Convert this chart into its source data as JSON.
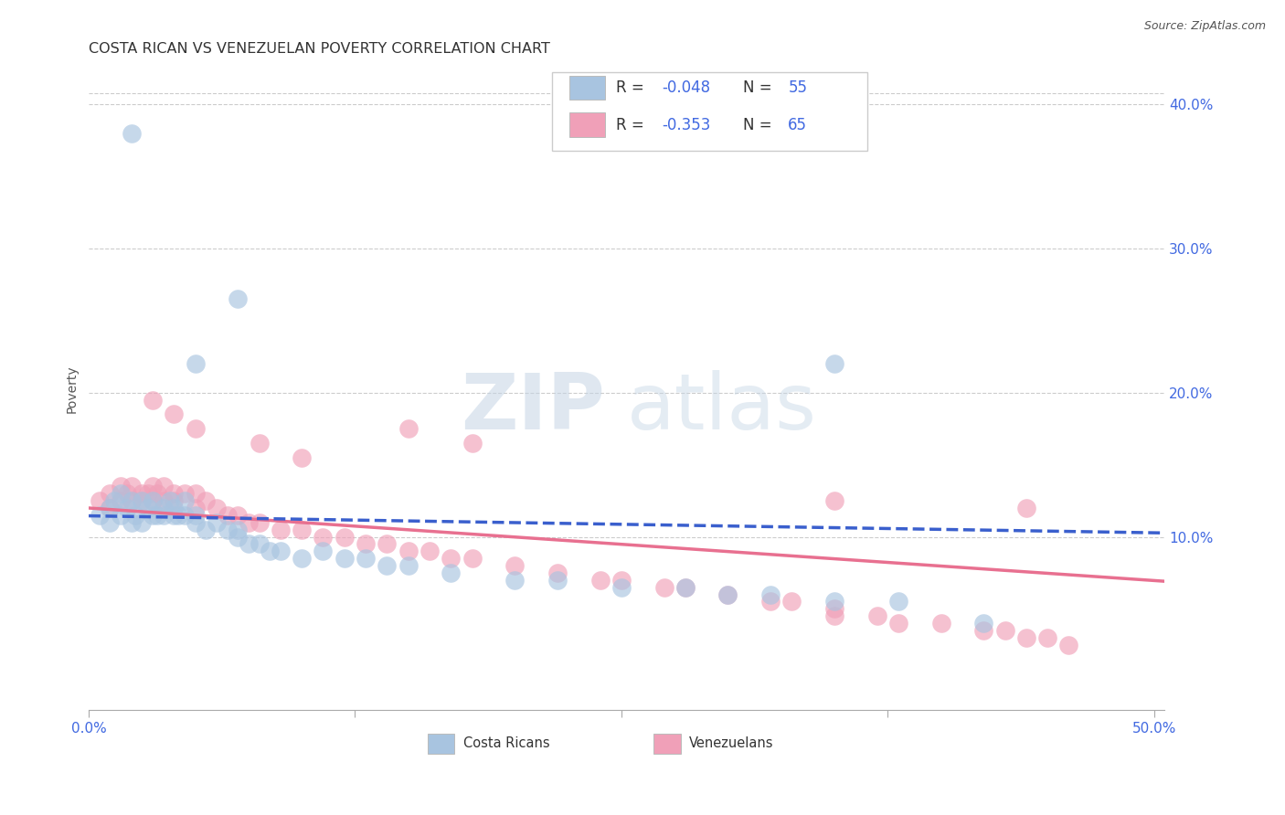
{
  "title": "COSTA RICAN VS VENEZUELAN POVERTY CORRELATION CHART",
  "source": "Source: ZipAtlas.com",
  "ylabel": "Poverty",
  "xlim": [
    0.0,
    0.505
  ],
  "ylim": [
    -0.02,
    0.425
  ],
  "ytick_vals": [
    0.1,
    0.2,
    0.3,
    0.4
  ],
  "ytick_labels": [
    "10.0%",
    "20.0%",
    "30.0%",
    "40.0%"
  ],
  "xtick_vals": [
    0.0,
    0.125,
    0.25,
    0.375,
    0.5
  ],
  "xtick_labels": [
    "0.0%",
    "",
    "",
    "",
    "50.0%"
  ],
  "cr_color": "#a8c4e0",
  "vz_color": "#f0a0b8",
  "cr_line_color": "#3a5fcd",
  "vz_line_color": "#e87090",
  "blue_text_color": "#4169e1",
  "R_cr": -0.048,
  "N_cr": 55,
  "R_vz": -0.353,
  "N_vz": 65,
  "legend_label_cr": "Costa Ricans",
  "legend_label_vz": "Venezuelans",
  "watermark_zip": "ZIP",
  "watermark_atlas": "atlas",
  "background_color": "#ffffff",
  "grid_color": "#cccccc",
  "cr_x": [
    0.005,
    0.01,
    0.01,
    0.012,
    0.015,
    0.015,
    0.018,
    0.02,
    0.02,
    0.022,
    0.025,
    0.025,
    0.028,
    0.03,
    0.03,
    0.032,
    0.035,
    0.035,
    0.038,
    0.04,
    0.04,
    0.042,
    0.045,
    0.045,
    0.05,
    0.05,
    0.055,
    0.06,
    0.065,
    0.07,
    0.07,
    0.075,
    0.08,
    0.085,
    0.09,
    0.1,
    0.11,
    0.12,
    0.13,
    0.14,
    0.15,
    0.17,
    0.2,
    0.22,
    0.25,
    0.28,
    0.3,
    0.32,
    0.35,
    0.38,
    0.02,
    0.05,
    0.07,
    0.35,
    0.42
  ],
  "cr_y": [
    0.115,
    0.12,
    0.11,
    0.125,
    0.13,
    0.115,
    0.12,
    0.11,
    0.125,
    0.115,
    0.125,
    0.11,
    0.12,
    0.115,
    0.125,
    0.115,
    0.12,
    0.115,
    0.125,
    0.115,
    0.12,
    0.115,
    0.125,
    0.115,
    0.11,
    0.115,
    0.105,
    0.11,
    0.105,
    0.105,
    0.1,
    0.095,
    0.095,
    0.09,
    0.09,
    0.085,
    0.09,
    0.085,
    0.085,
    0.08,
    0.08,
    0.075,
    0.07,
    0.07,
    0.065,
    0.065,
    0.06,
    0.06,
    0.055,
    0.055,
    0.38,
    0.22,
    0.265,
    0.22,
    0.04
  ],
  "vz_x": [
    0.005,
    0.01,
    0.01,
    0.015,
    0.015,
    0.018,
    0.02,
    0.02,
    0.025,
    0.025,
    0.028,
    0.03,
    0.03,
    0.032,
    0.035,
    0.035,
    0.04,
    0.04,
    0.045,
    0.05,
    0.05,
    0.055,
    0.06,
    0.065,
    0.07,
    0.075,
    0.08,
    0.09,
    0.1,
    0.11,
    0.12,
    0.13,
    0.14,
    0.15,
    0.16,
    0.17,
    0.18,
    0.2,
    0.22,
    0.24,
    0.25,
    0.27,
    0.28,
    0.3,
    0.32,
    0.33,
    0.35,
    0.35,
    0.37,
    0.38,
    0.4,
    0.42,
    0.43,
    0.44,
    0.45,
    0.46,
    0.03,
    0.04,
    0.05,
    0.08,
    0.1,
    0.15,
    0.18,
    0.35,
    0.44
  ],
  "vz_y": [
    0.125,
    0.13,
    0.12,
    0.125,
    0.135,
    0.13,
    0.125,
    0.135,
    0.13,
    0.125,
    0.13,
    0.125,
    0.135,
    0.13,
    0.125,
    0.135,
    0.13,
    0.125,
    0.13,
    0.12,
    0.13,
    0.125,
    0.12,
    0.115,
    0.115,
    0.11,
    0.11,
    0.105,
    0.105,
    0.1,
    0.1,
    0.095,
    0.095,
    0.09,
    0.09,
    0.085,
    0.085,
    0.08,
    0.075,
    0.07,
    0.07,
    0.065,
    0.065,
    0.06,
    0.055,
    0.055,
    0.05,
    0.045,
    0.045,
    0.04,
    0.04,
    0.035,
    0.035,
    0.03,
    0.03,
    0.025,
    0.195,
    0.185,
    0.175,
    0.165,
    0.155,
    0.175,
    0.165,
    0.125,
    0.12
  ]
}
